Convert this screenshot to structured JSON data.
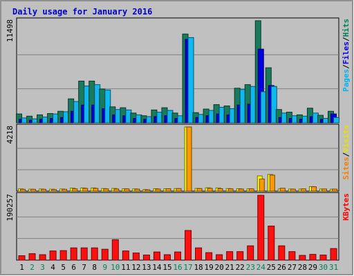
{
  "chart_data": {
    "type": "bar",
    "title": "Daily usage for January 2016",
    "days": [
      "1",
      "2",
      "3",
      "4",
      "5",
      "6",
      "7",
      "8",
      "9",
      "10",
      "11",
      "12",
      "13",
      "14",
      "15",
      "16",
      "17",
      "18",
      "19",
      "20",
      "21",
      "22",
      "23",
      "24",
      "25",
      "26",
      "27",
      "28",
      "29",
      "30",
      "31"
    ],
    "weekend_days": [
      "2",
      "3",
      "9",
      "10",
      "16",
      "17",
      "23",
      "24",
      "30",
      "31"
    ],
    "panels": [
      {
        "id": "top",
        "max_label": "11498",
        "ymax": 11498,
        "legend": [
          {
            "text": "Pages",
            "color": "#00b4f0"
          },
          {
            "text": "Files",
            "color": "#0000e0"
          },
          {
            "text": "Hits",
            "color": "#00805a"
          }
        ],
        "series": [
          {
            "name": "Hits",
            "color": "#1a7a5c",
            "values": [
              1000,
              750,
              900,
              1050,
              1300,
              2700,
              4700,
              4700,
              3800,
              1800,
              1700,
              1100,
              800,
              1450,
              1700,
              1100,
              10000,
              1150,
              1550,
              2050,
              1900,
              3900,
              4300,
              11498,
              6200,
              1500,
              1200,
              900,
              1650,
              850,
              1300
            ]
          },
          {
            "name": "Files",
            "color": "#0000e0",
            "values": [
              400,
              300,
              400,
              500,
              600,
              1300,
              2000,
              2000,
              1600,
              900,
              800,
              500,
              400,
              700,
              800,
              500,
              9400,
              600,
              800,
              1000,
              900,
              2000,
              2100,
              8300,
              4200,
              600,
              500,
              400,
              700,
              400,
              1000
            ]
          },
          {
            "name": "Pages",
            "color": "#10b8f0",
            "values": [
              550,
              450,
              650,
              1000,
              1250,
              2400,
              4150,
              4300,
              3700,
              1500,
              1450,
              900,
              700,
              1200,
              1400,
              800,
              9600,
              950,
              1400,
              1750,
              1600,
              3750,
              4100,
              3500,
              4100,
              1100,
              800,
              750,
              1100,
              500,
              600
            ]
          }
        ]
      },
      {
        "id": "middle",
        "max_label": "4218",
        "ymax": 4218,
        "legend": [
          {
            "text": "Sites",
            "color": "#f08000"
          },
          {
            "text": "Visits",
            "color": "#e8e000"
          }
        ],
        "series": [
          {
            "name": "Visits",
            "color": "#ffff00",
            "values": [
              150,
              130,
              140,
              130,
              140,
              200,
              210,
              210,
              170,
              180,
              160,
              150,
              110,
              160,
              160,
              170,
              4218,
              180,
              220,
              210,
              170,
              160,
              160,
              1000,
              1100,
              140,
              140,
              140,
              300,
              140,
              130
            ]
          },
          {
            "name": "Sites",
            "color": "#ff9900",
            "values": [
              120,
              120,
              120,
              100,
              120,
              150,
              180,
              180,
              150,
              140,
              150,
              130,
              90,
              140,
              160,
              170,
              4218,
              170,
              180,
              160,
              150,
              140,
              150,
              800,
              1050,
              190,
              130,
              150,
              290,
              140,
              130
            ]
          }
        ]
      },
      {
        "id": "bottom",
        "max_label": "190257",
        "ymax": 190257,
        "legend": [
          {
            "text": "KBytes",
            "color": "#ff0000"
          }
        ],
        "series": [
          {
            "name": "KBytes",
            "color": "#ff1010",
            "values": [
              13000,
              19000,
              16000,
              27000,
              28000,
              36000,
              36000,
              36000,
              32000,
              60000,
              27000,
              21000,
              15000,
              24000,
              16000,
              24000,
              87000,
              36000,
              22000,
              16000,
              25000,
              25000,
              42000,
              190257,
              100000,
              42000,
              25000,
              14000,
              17000,
              15000,
              34000
            ]
          }
        ]
      }
    ]
  }
}
